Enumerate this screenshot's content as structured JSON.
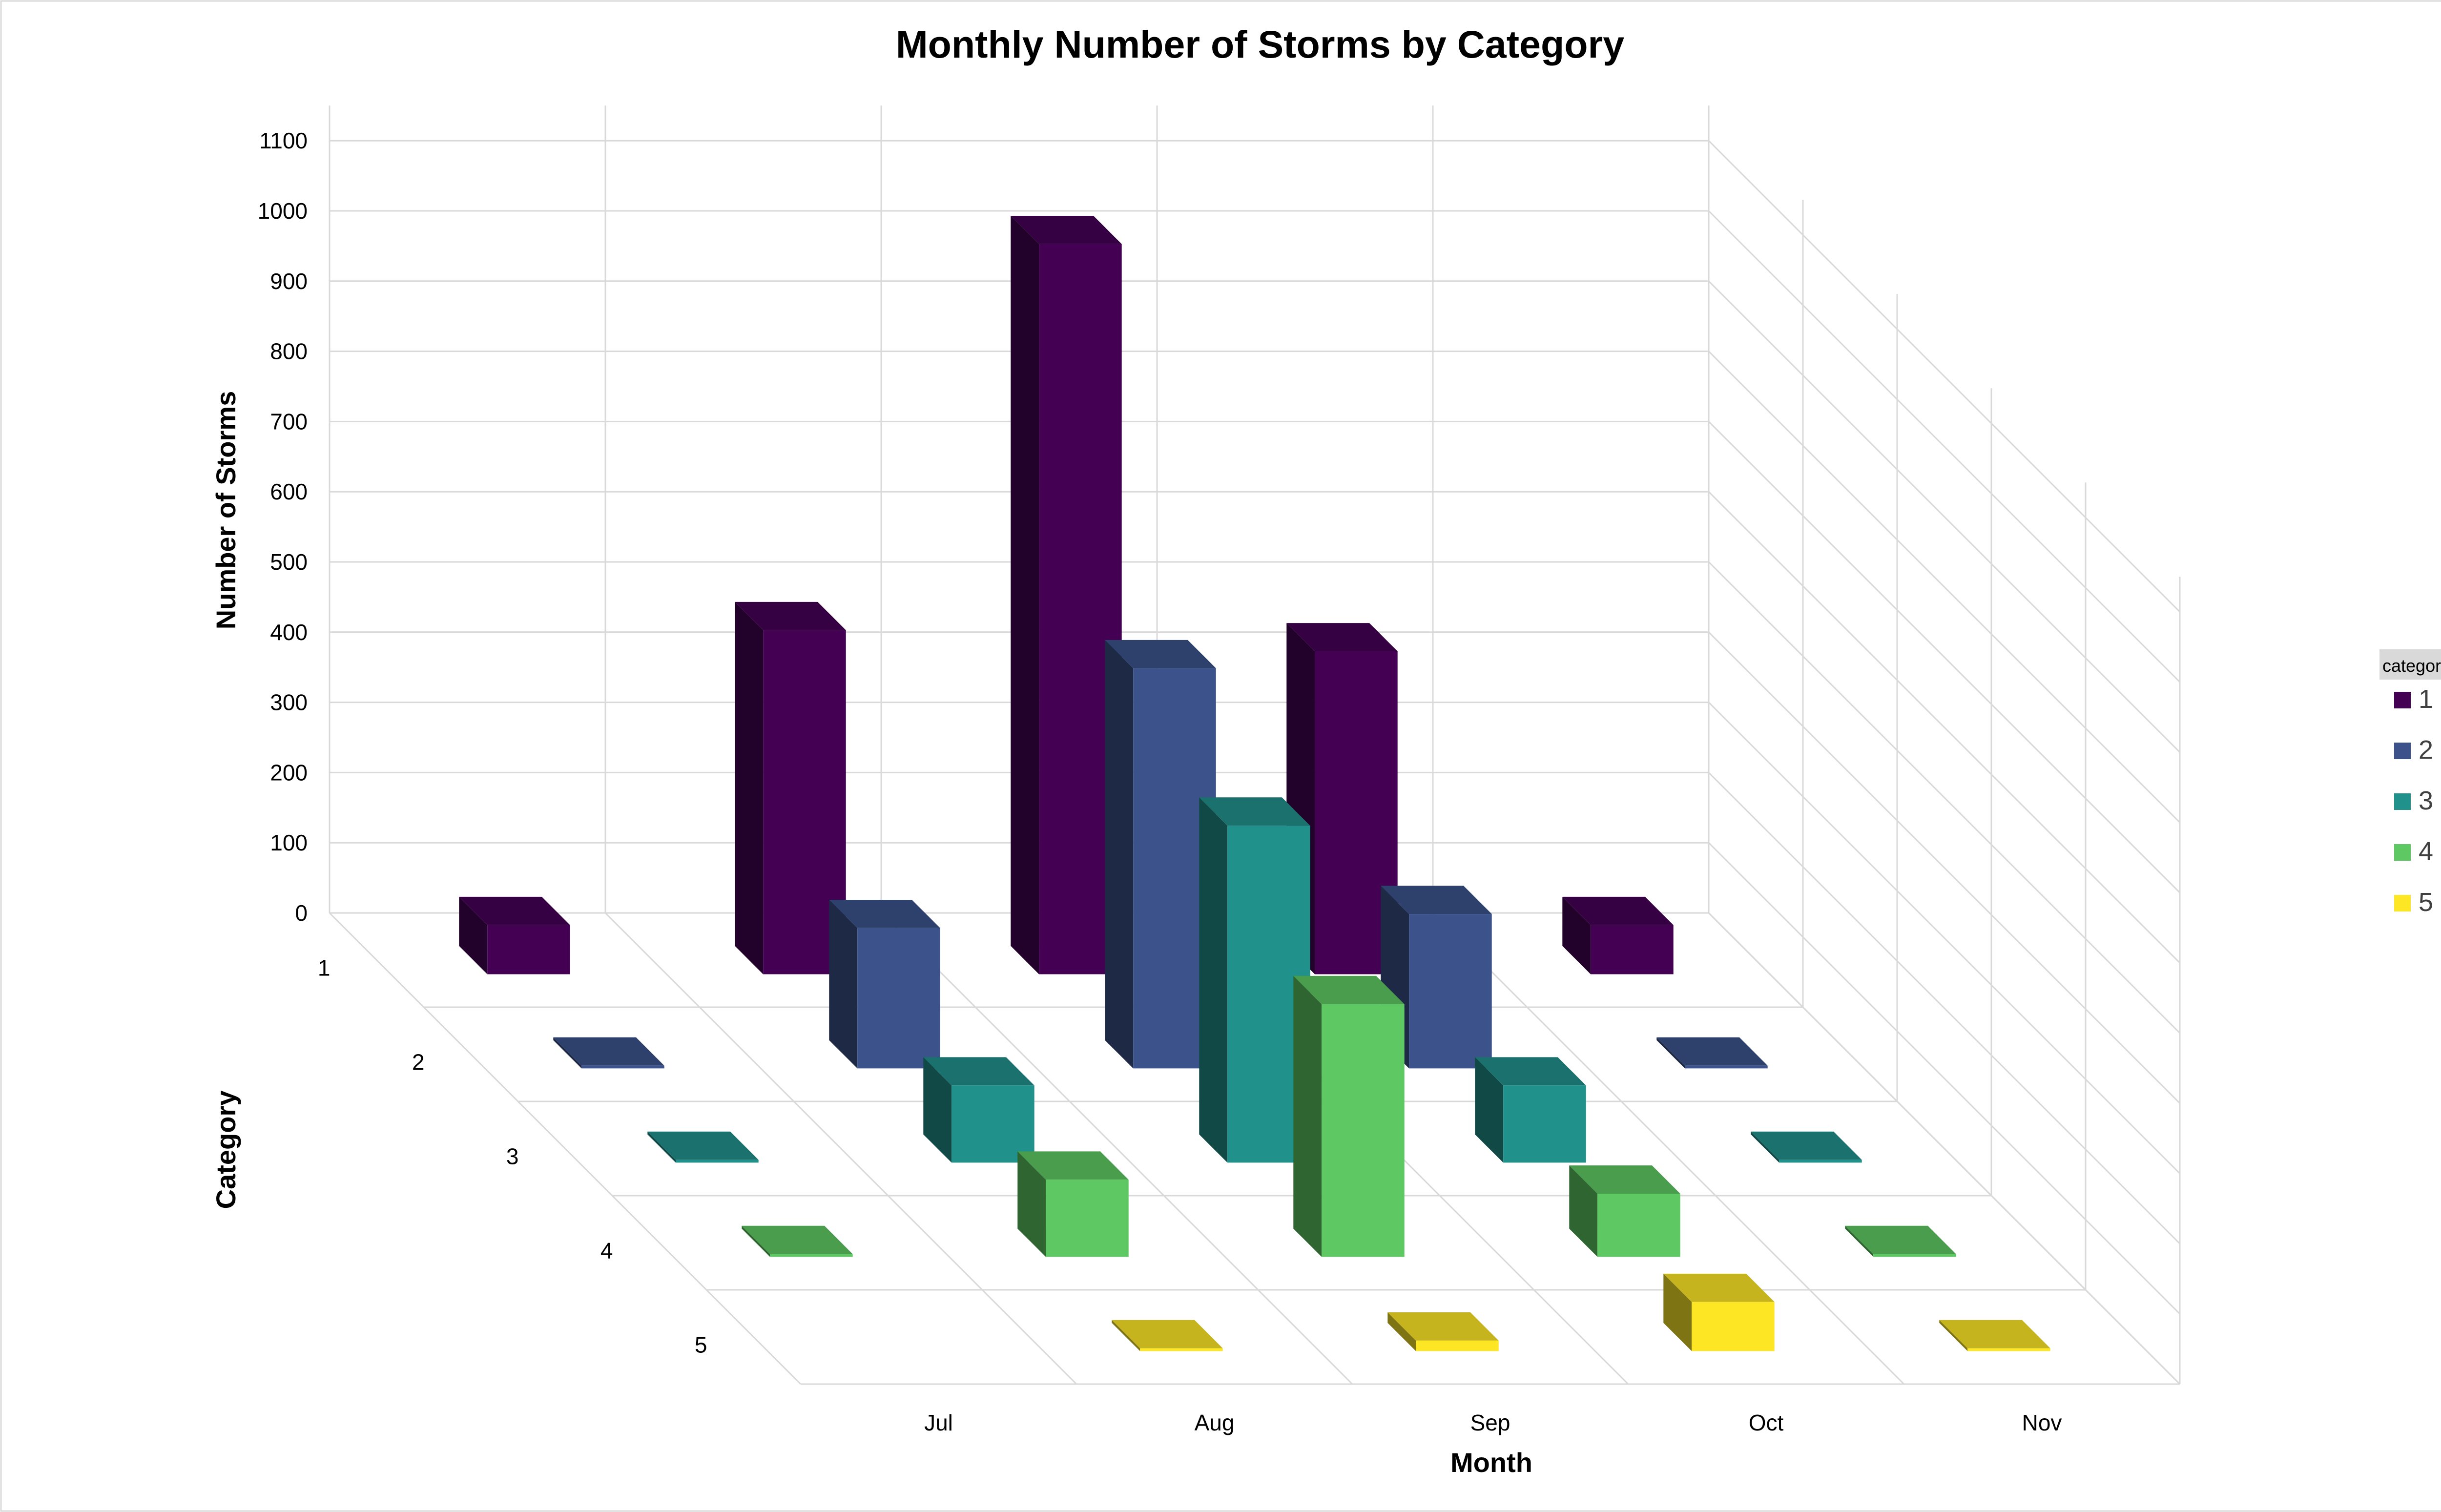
{
  "chart_data": {
    "type": "bar",
    "title": "Monthly Number of Storms by Category",
    "xlabel": "Month",
    "ylabel": "Number of Storms",
    "zlabel": "Category",
    "categories": [
      "Jul",
      "Aug",
      "Sep",
      "Oct",
      "Nov"
    ],
    "y_ticks": [
      "0",
      "100",
      "200",
      "300",
      "400",
      "500",
      "600",
      "700",
      "800",
      "900",
      "1000",
      "1100"
    ],
    "ylim": [
      0,
      1100
    ],
    "grid": true,
    "legend_title": "category",
    "legend_position": "right",
    "series": [
      {
        "name": "1",
        "color": "#440154",
        "values": [
          70,
          490,
          1040,
          460,
          70
        ]
      },
      {
        "name": "2",
        "color": "#3B528B",
        "values": [
          0,
          200,
          570,
          220,
          0
        ]
      },
      {
        "name": "3",
        "color": "#21918C",
        "values": [
          0,
          110,
          480,
          110,
          0
        ]
      },
      {
        "name": "4",
        "color": "#5EC962",
        "values": [
          0,
          110,
          360,
          90,
          0
        ]
      },
      {
        "name": "5",
        "color": "#FDE725",
        "values": [
          null,
          0,
          15,
          70,
          0
        ]
      }
    ]
  }
}
